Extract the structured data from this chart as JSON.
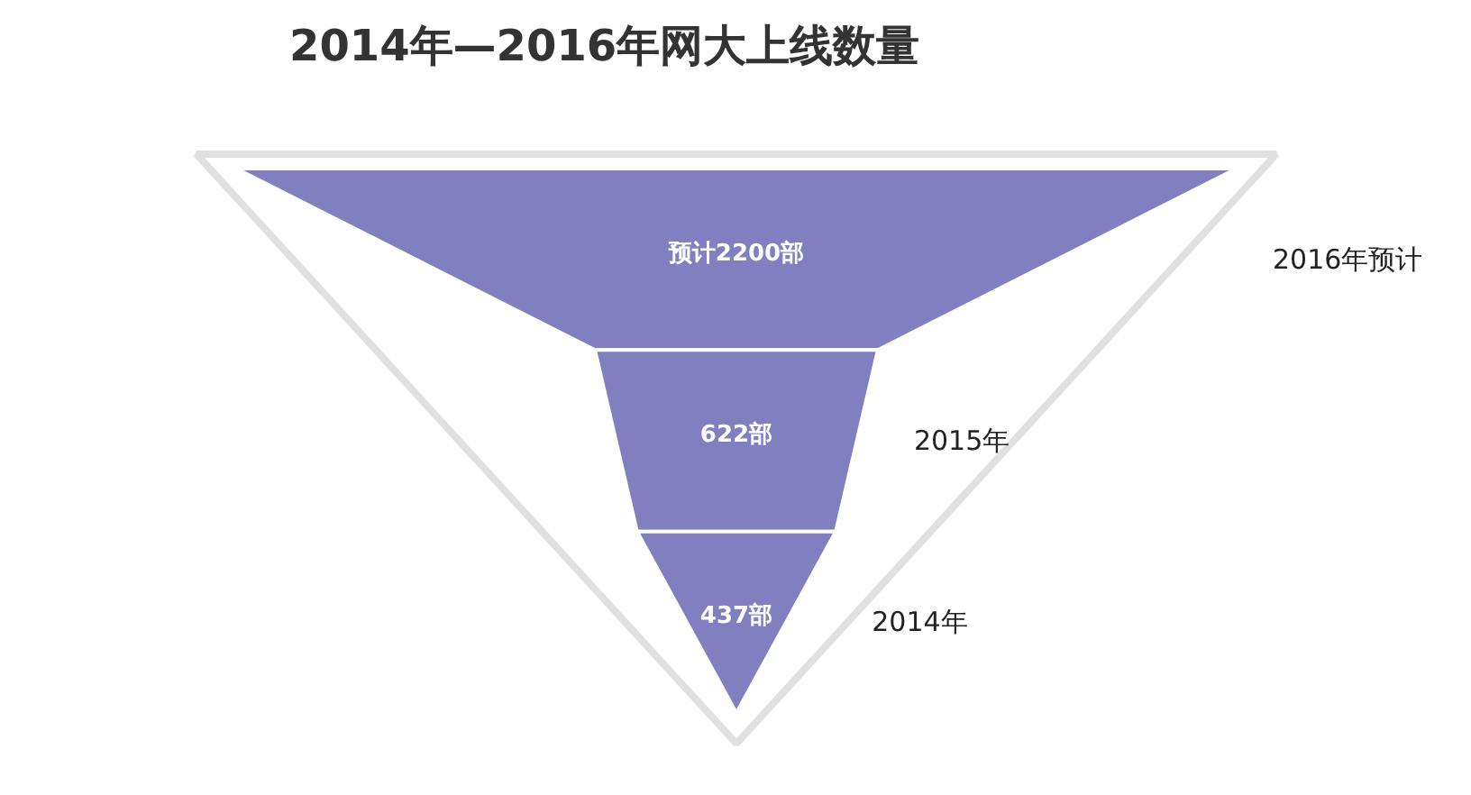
{
  "chart_data": {
    "type": "other",
    "title": "2014年—2016年网大上线数量",
    "categories": [
      "2016年预计",
      "2015年",
      "2014年"
    ],
    "values": [
      2200,
      622,
      437
    ],
    "value_labels": [
      "预计2200部",
      "622部",
      "437部"
    ],
    "color": "#8080c0"
  }
}
